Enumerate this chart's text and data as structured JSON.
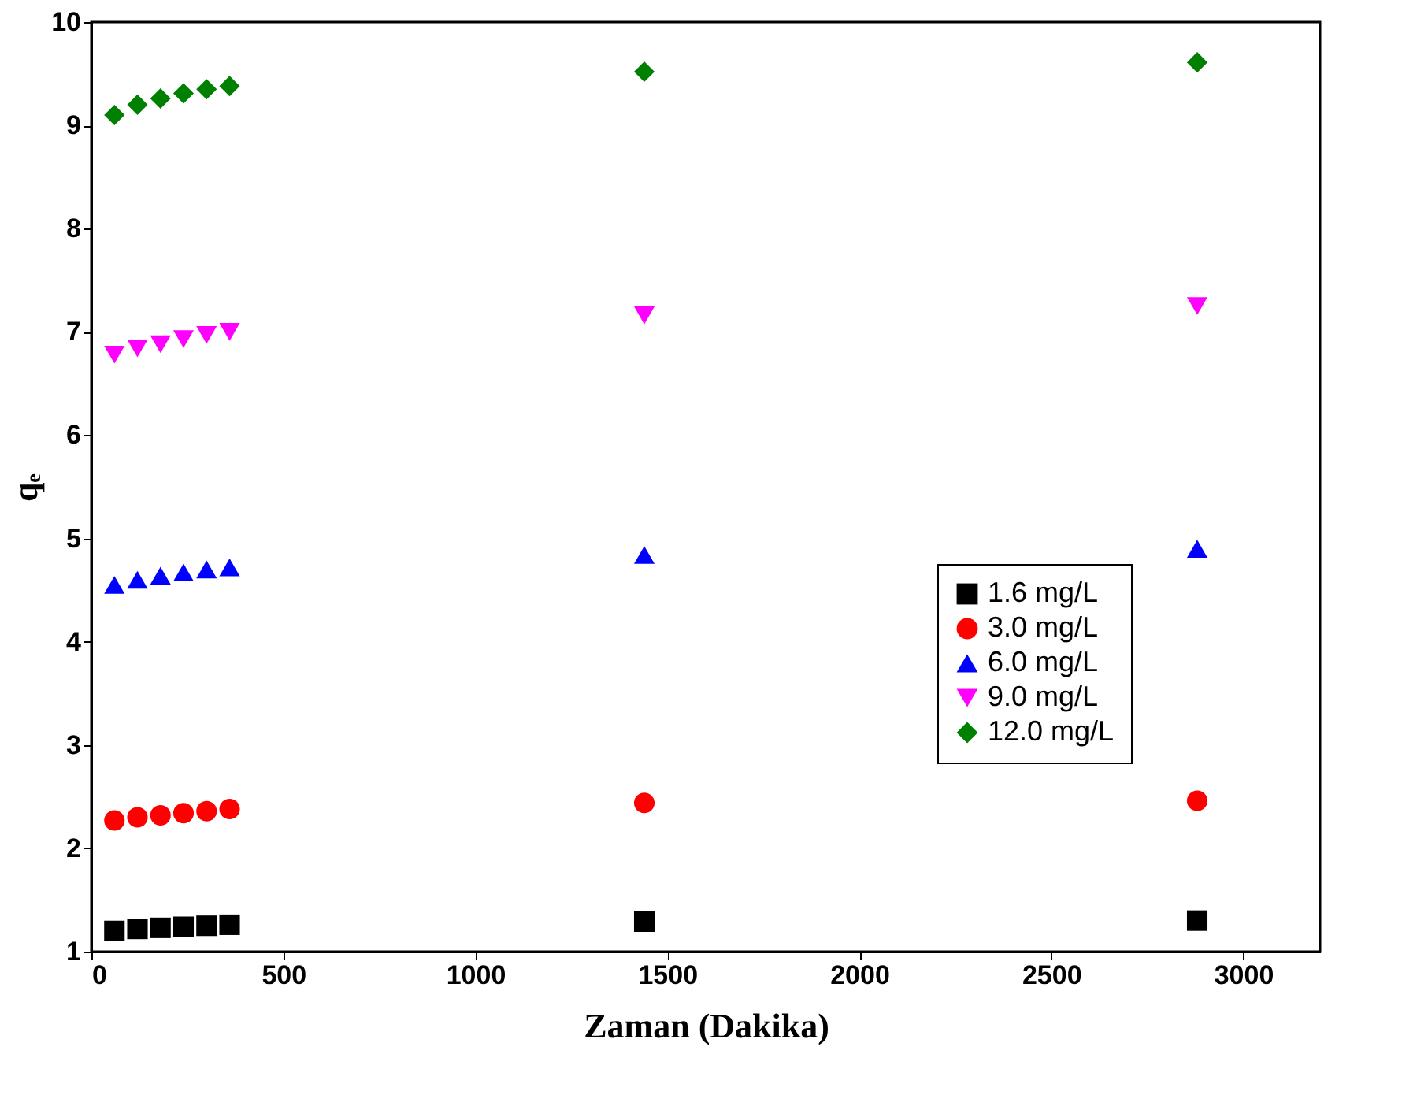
{
  "chart_data": {
    "type": "scatter",
    "xlabel": "Zaman (Dakika)",
    "ylabel": "qₑ",
    "x": [
      60,
      120,
      180,
      240,
      300,
      360,
      1440,
      2880
    ],
    "xlim": [
      0,
      3200
    ],
    "xticks": [
      0,
      500,
      1000,
      1500,
      2000,
      2500,
      3000
    ],
    "ylim": [
      1,
      10
    ],
    "yticks": [
      1,
      2,
      3,
      4,
      5,
      6,
      7,
      8,
      9,
      10
    ],
    "grid": false,
    "legend": "bottom right",
    "series": [
      {
        "name": "1.6 mg/L",
        "color": "#000000",
        "marker": "square",
        "values": [
          1.2,
          1.22,
          1.23,
          1.24,
          1.25,
          1.26,
          1.29,
          1.3
        ]
      },
      {
        "name": "3.0 mg/L",
        "color": "#ff0000",
        "marker": "circle",
        "values": [
          2.27,
          2.3,
          2.32,
          2.34,
          2.36,
          2.38,
          2.44,
          2.46
        ]
      },
      {
        "name": "6.0 mg/L",
        "color": "#0000ff",
        "marker": "triangle",
        "values": [
          4.55,
          4.6,
          4.64,
          4.67,
          4.7,
          4.72,
          4.84,
          4.9
        ]
      },
      {
        "name": "9.0 mg/L",
        "color": "#ff00ff",
        "marker": "triangle-down",
        "values": [
          6.78,
          6.84,
          6.88,
          6.93,
          6.97,
          7.0,
          7.16,
          7.25
        ]
      },
      {
        "name": "12.0 mg/L",
        "color": "#008000",
        "marker": "diamond",
        "values": [
          9.1,
          9.2,
          9.26,
          9.31,
          9.35,
          9.38,
          9.52,
          9.61
        ]
      }
    ]
  }
}
